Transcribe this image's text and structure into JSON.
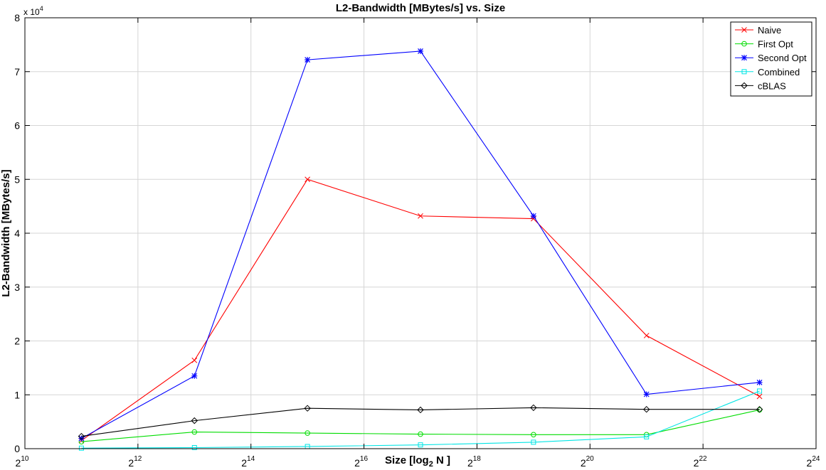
{
  "chart_data": {
    "type": "line",
    "title": "L2-Bandwidth [MBytes/s] vs. Size",
    "xlabel": {
      "main": "Size [log",
      "sub": "2",
      "tail": " N ]"
    },
    "ylabel": "L2-Bandwidth [MBytes/s]",
    "y_multiplier_label": {
      "prefix": "x 10",
      "exponent": "4"
    },
    "x_scale": "log2",
    "xlim_exponent": [
      10,
      24
    ],
    "ylim": [
      0,
      80000
    ],
    "grid": true,
    "legend_position": "top-right",
    "x_ticks": [
      {
        "base": "2",
        "exp": "10",
        "value_exponent": 10
      },
      {
        "base": "2",
        "exp": "12",
        "value_exponent": 12
      },
      {
        "base": "2",
        "exp": "14",
        "value_exponent": 14
      },
      {
        "base": "2",
        "exp": "16",
        "value_exponent": 16
      },
      {
        "base": "2",
        "exp": "18",
        "value_exponent": 18
      },
      {
        "base": "2",
        "exp": "20",
        "value_exponent": 20
      },
      {
        "base": "2",
        "exp": "22",
        "value_exponent": 22
      },
      {
        "base": "2",
        "exp": "24",
        "value_exponent": 24
      }
    ],
    "y_ticks": [
      {
        "label": "0",
        "value": 0
      },
      {
        "label": "1",
        "value": 10000
      },
      {
        "label": "2",
        "value": 20000
      },
      {
        "label": "3",
        "value": 30000
      },
      {
        "label": "4",
        "value": 40000
      },
      {
        "label": "5",
        "value": 50000
      },
      {
        "label": "6",
        "value": 60000
      },
      {
        "label": "7",
        "value": 70000
      },
      {
        "label": "8",
        "value": 80000
      }
    ],
    "x": [
      2048,
      8192,
      32768,
      131072,
      524288,
      2097152,
      8388608
    ],
    "series": [
      {
        "name": "Naive",
        "color": "#ff0000",
        "marker": "x",
        "values": [
          1500,
          16400,
          50000,
          43200,
          42700,
          21000,
          9700
        ]
      },
      {
        "name": "First Opt",
        "color": "#00dd00",
        "marker": "circle",
        "values": [
          1300,
          3100,
          2900,
          2700,
          2600,
          2600,
          7200
        ]
      },
      {
        "name": "Second Opt",
        "color": "#0000ff",
        "marker": "star",
        "values": [
          1900,
          13500,
          72200,
          73800,
          43200,
          10100,
          12300
        ]
      },
      {
        "name": "Combined",
        "color": "#00e5e5",
        "marker": "square",
        "values": [
          100,
          200,
          400,
          700,
          1200,
          2200,
          10700
        ]
      },
      {
        "name": "cBLAS",
        "color": "#000000",
        "marker": "diamond",
        "values": [
          2300,
          5200,
          7500,
          7200,
          7600,
          7300,
          7300
        ]
      }
    ]
  }
}
